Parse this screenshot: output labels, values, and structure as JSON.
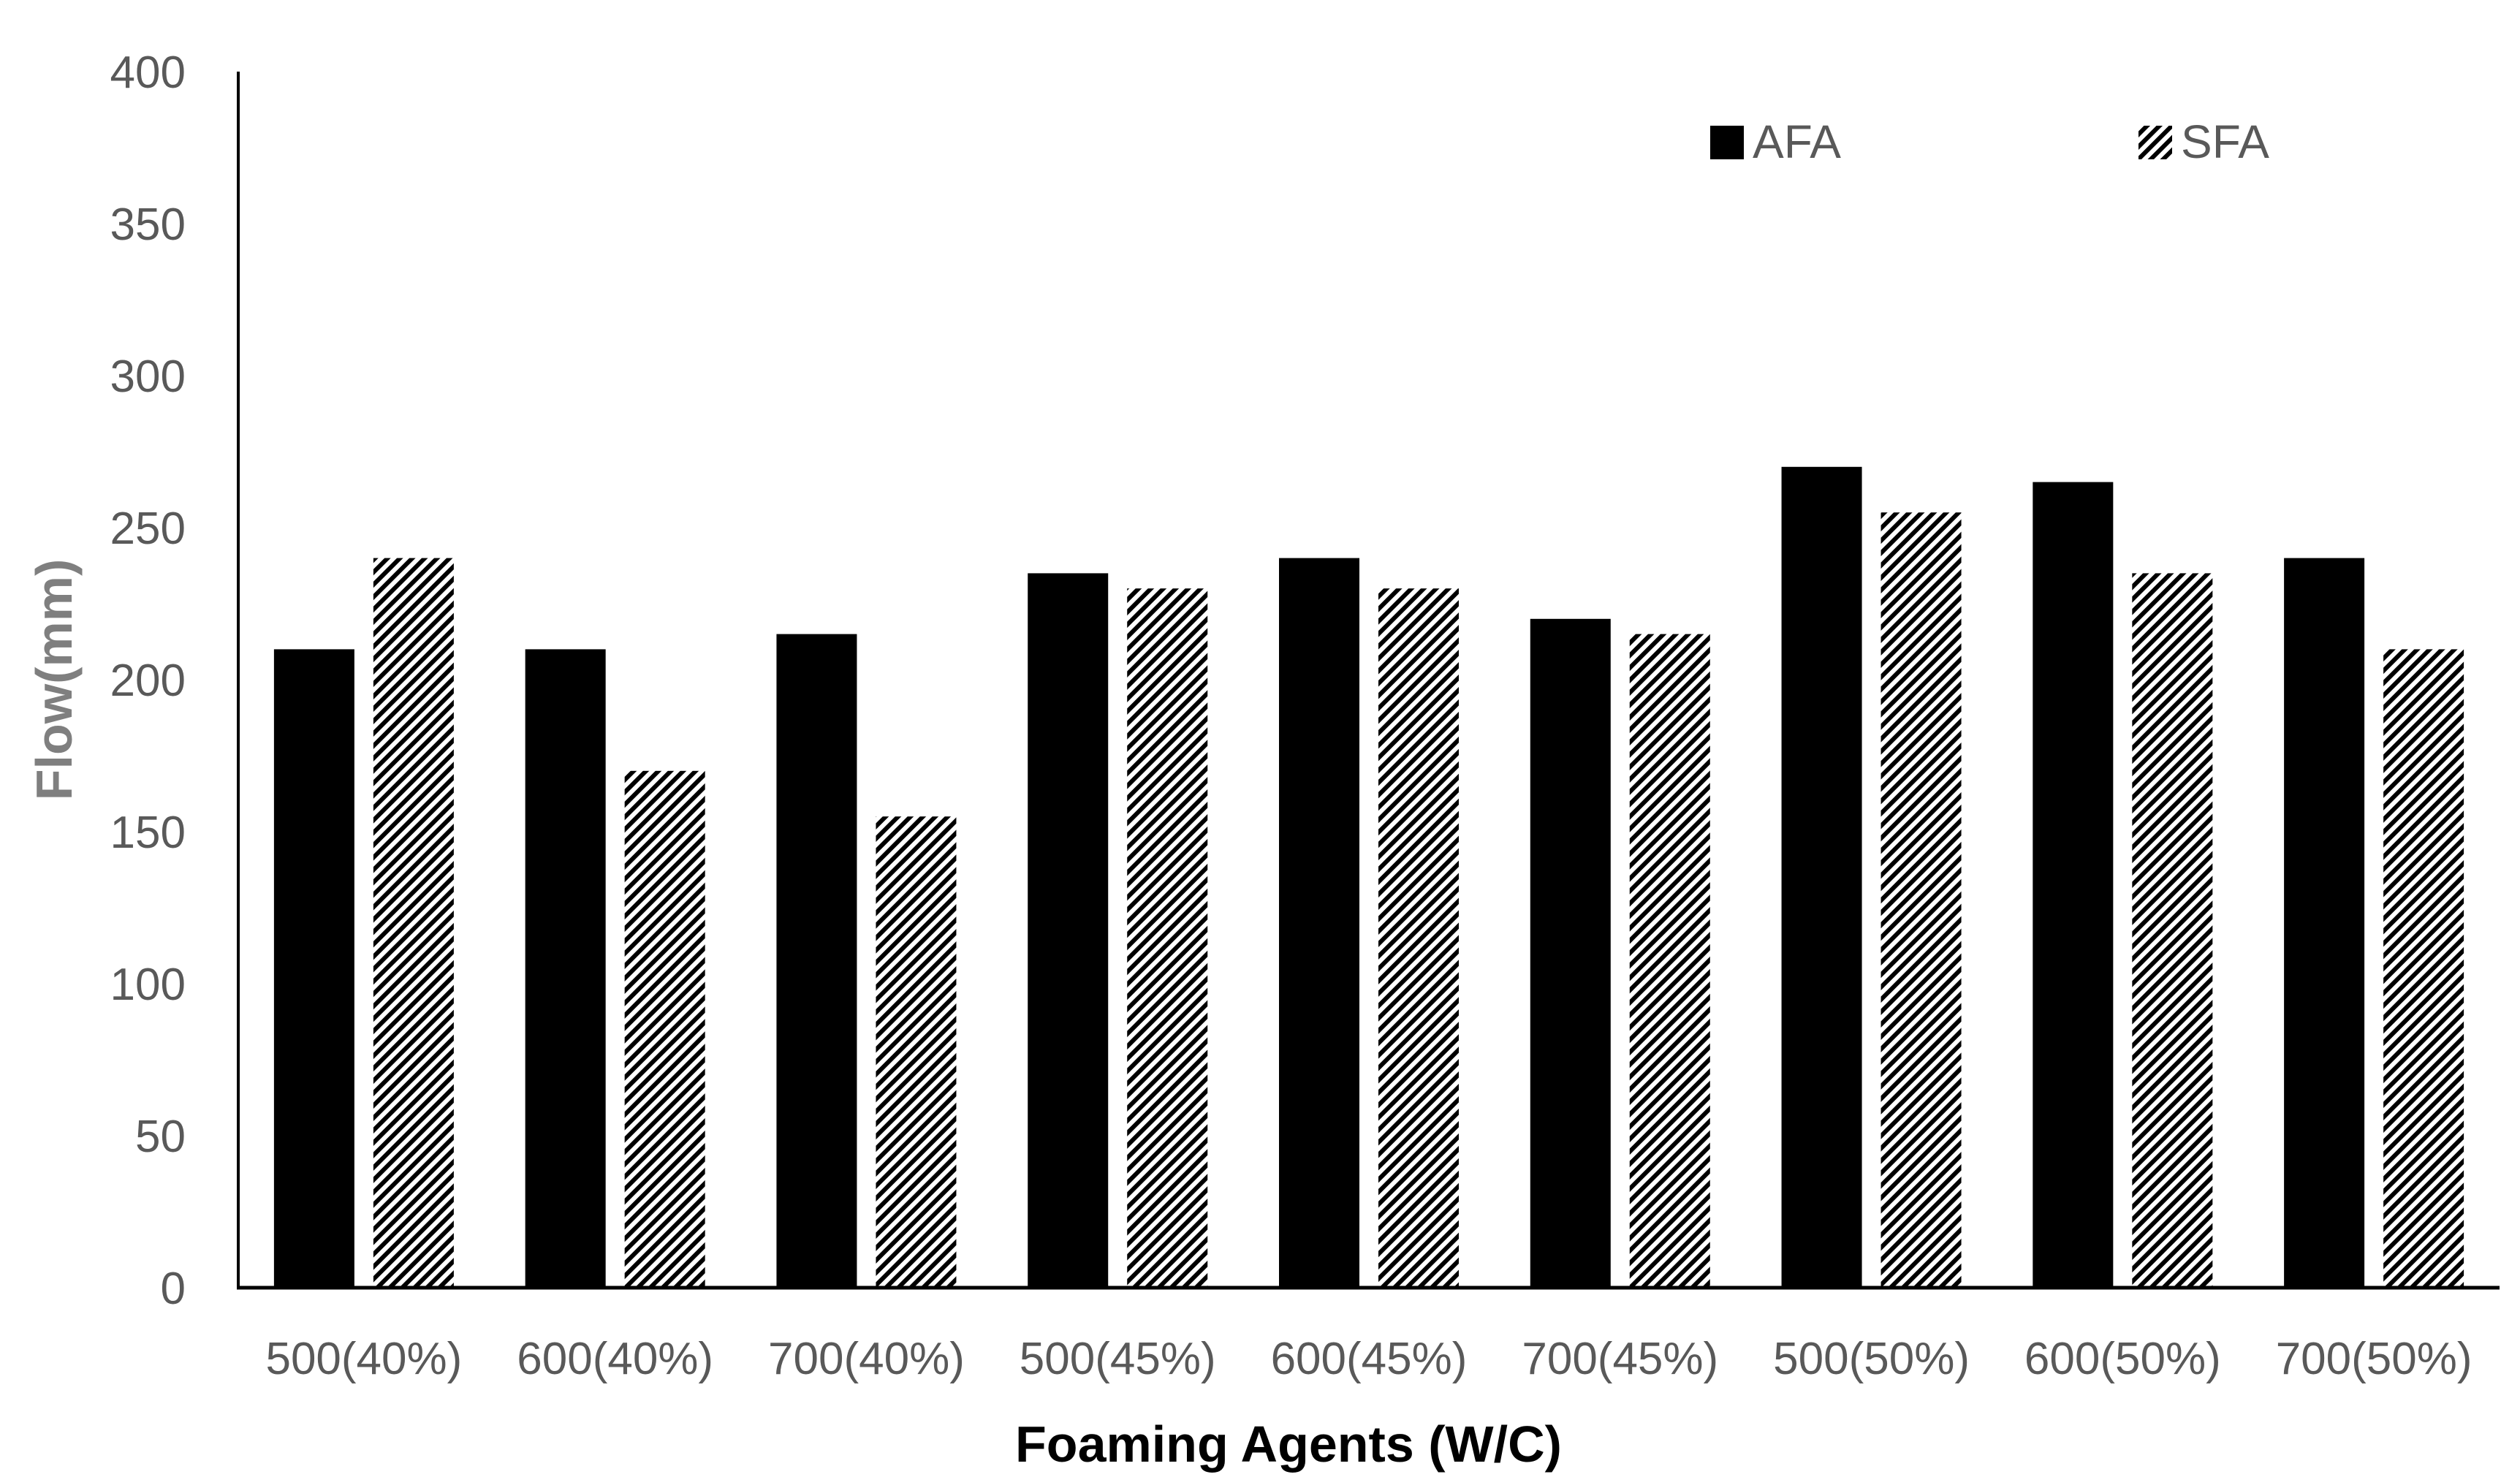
{
  "chart_data": {
    "type": "bar",
    "title": "",
    "xlabel": "Foaming Agents (W/C)",
    "ylabel": "Flow(mm)",
    "ylim": [
      0,
      400
    ],
    "yticks": [
      0,
      50,
      100,
      150,
      200,
      250,
      300,
      350,
      400
    ],
    "grid": false,
    "legend_position": "top-right",
    "categories": [
      "500(40%)",
      "600(40%)",
      "700(40%)",
      "500(45%)",
      "600(45%)",
      "700(45%)",
      "500(50%)",
      "600(50%)",
      "700(50%)"
    ],
    "series": [
      {
        "name": "AFA",
        "pattern": "solid",
        "color": "#000000",
        "values": [
          210,
          210,
          215,
          235,
          240,
          220,
          270,
          265,
          240
        ]
      },
      {
        "name": "SFA",
        "pattern": "diagonal-hatch",
        "color": "#000000",
        "values": [
          240,
          170,
          155,
          230,
          230,
          215,
          255,
          235,
          210
        ]
      }
    ],
    "colors": {
      "tick_text": "#595959",
      "x_title": "#000000",
      "y_title": "#7f7f7f",
      "axis_line": "#000000"
    }
  }
}
